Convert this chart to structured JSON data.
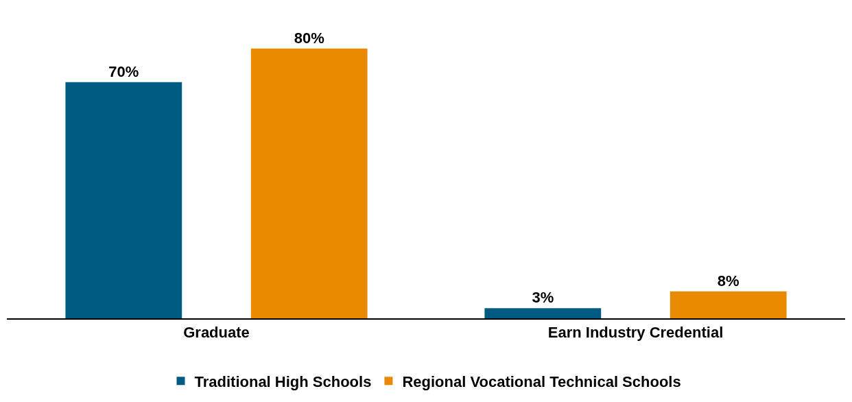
{
  "chart_data": {
    "type": "bar",
    "categories": [
      "Graduate",
      "Earn Industry Credential"
    ],
    "series": [
      {
        "name": "Traditional High Schools",
        "color": "#005b82",
        "values": [
          70,
          3
        ],
        "value_labels": [
          "70%",
          "3%"
        ]
      },
      {
        "name": "Regional Vocational Technical Schools",
        "color": "#e88a00",
        "values": [
          80,
          8
        ],
        "value_labels": [
          "80%",
          "8%"
        ]
      }
    ],
    "legend": "bottom"
  }
}
